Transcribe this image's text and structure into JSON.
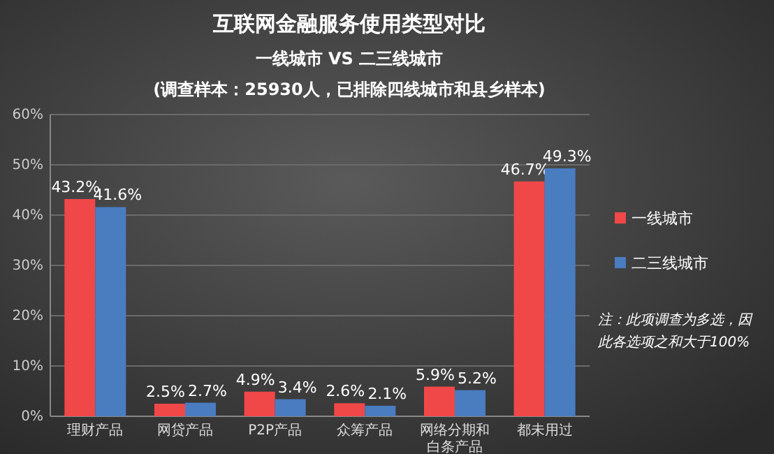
{
  "chart_data": {
    "type": "bar",
    "title": "互联网金融服务使用类型对比",
    "subtitle": "一线城市 VS 二三线城市\n(调查样本：25930人，已排除四线城市和县乡样本)",
    "categories": [
      "理财产品",
      "网贷产品",
      "P2P产品",
      "众筹产品",
      "网络分期和白条产品",
      "都未用过"
    ],
    "series": [
      {
        "name": "一线城市",
        "color": "#f04848",
        "values": [
          43.2,
          2.5,
          4.9,
          2.6,
          5.9,
          46.7
        ],
        "value_labels": [
          "43.2%",
          "2.5%",
          "4.9%",
          "2.6%",
          "5.9%",
          "46.7%"
        ]
      },
      {
        "name": "二三线城市",
        "color": "#4a7cc0",
        "values": [
          41.6,
          2.7,
          3.4,
          2.1,
          5.2,
          49.3
        ],
        "value_labels": [
          "41.6%",
          "2.7%",
          "3.4%",
          "2.1%",
          "5.2%",
          "49.3%"
        ]
      }
    ],
    "ylim": [
      0,
      60
    ],
    "yticks": [
      {
        "value": 0,
        "label": "0%"
      },
      {
        "value": 10,
        "label": "10%"
      },
      {
        "value": 20,
        "label": "20%"
      },
      {
        "value": 30,
        "label": "30%"
      },
      {
        "value": 40,
        "label": "40%"
      },
      {
        "value": 50,
        "label": "50%"
      },
      {
        "value": 60,
        "label": "60%"
      }
    ],
    "grid": "y",
    "legend": "right",
    "annotations": [
      "注：此项调查为多选，因",
      "此各选项之和大于100%"
    ]
  }
}
